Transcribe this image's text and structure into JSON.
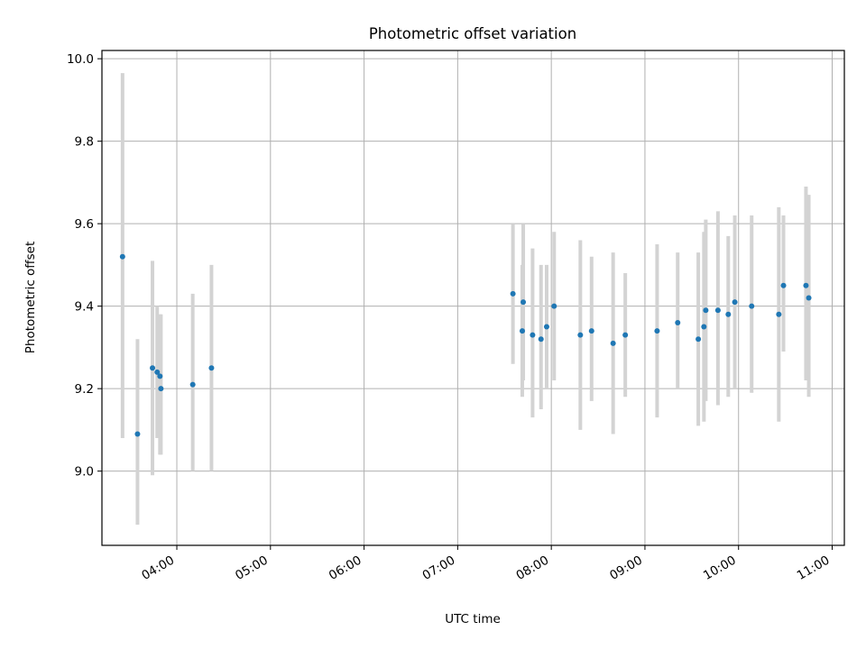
{
  "chart_data": {
    "type": "scatter",
    "title": "Photometric offset variation",
    "xlabel": "UTC time",
    "ylabel": "Photometric offset",
    "x_unit": "hour (UTC)",
    "xlim": [
      3.2,
      11.13
    ],
    "ylim": [
      8.82,
      10.02
    ],
    "grid": true,
    "x_ticks": [
      {
        "value": 4,
        "label": "04:00"
      },
      {
        "value": 5,
        "label": "05:00"
      },
      {
        "value": 6,
        "label": "06:00"
      },
      {
        "value": 7,
        "label": "07:00"
      },
      {
        "value": 8,
        "label": "08:00"
      },
      {
        "value": 9,
        "label": "09:00"
      },
      {
        "value": 10,
        "label": "10:00"
      },
      {
        "value": 11,
        "label": "11:00"
      }
    ],
    "y_ticks": [
      {
        "value": 9.0,
        "label": "9.0"
      },
      {
        "value": 9.2,
        "label": "9.2"
      },
      {
        "value": 9.4,
        "label": "9.4"
      },
      {
        "value": 9.6,
        "label": "9.6"
      },
      {
        "value": 9.8,
        "label": "9.8"
      },
      {
        "value": 10.0,
        "label": "10.0"
      }
    ],
    "marker_color": "#1f77b4",
    "errorbar_color": "#d3d3d3",
    "points": [
      {
        "x": 3.42,
        "y": 9.52,
        "low": 9.08,
        "high": 9.965
      },
      {
        "x": 3.58,
        "y": 9.09,
        "low": 8.87,
        "high": 9.32
      },
      {
        "x": 3.74,
        "y": 9.25,
        "low": 8.99,
        "high": 9.51
      },
      {
        "x": 3.79,
        "y": 9.24,
        "low": 9.08,
        "high": 9.4
      },
      {
        "x": 3.82,
        "y": 9.23,
        "low": 9.04,
        "high": 9.38
      },
      {
        "x": 3.83,
        "y": 9.2,
        "low": 9.04,
        "high": 9.38
      },
      {
        "x": 4.17,
        "y": 9.21,
        "low": 9.0,
        "high": 9.43
      },
      {
        "x": 4.37,
        "y": 9.25,
        "low": 9.0,
        "high": 9.5
      },
      {
        "x": 7.59,
        "y": 9.43,
        "low": 9.26,
        "high": 9.6
      },
      {
        "x": 7.69,
        "y": 9.34,
        "low": 9.18,
        "high": 9.5
      },
      {
        "x": 7.7,
        "y": 9.41,
        "low": 9.22,
        "high": 9.6
      },
      {
        "x": 7.8,
        "y": 9.33,
        "low": 9.13,
        "high": 9.54
      },
      {
        "x": 7.89,
        "y": 9.32,
        "low": 9.15,
        "high": 9.5
      },
      {
        "x": 7.95,
        "y": 9.35,
        "low": 9.2,
        "high": 9.5
      },
      {
        "x": 8.03,
        "y": 9.4,
        "low": 9.22,
        "high": 9.58
      },
      {
        "x": 8.31,
        "y": 9.33,
        "low": 9.1,
        "high": 9.56
      },
      {
        "x": 8.43,
        "y": 9.34,
        "low": 9.17,
        "high": 9.52
      },
      {
        "x": 8.66,
        "y": 9.31,
        "low": 9.09,
        "high": 9.53
      },
      {
        "x": 8.79,
        "y": 9.33,
        "low": 9.18,
        "high": 9.48
      },
      {
        "x": 9.13,
        "y": 9.34,
        "low": 9.13,
        "high": 9.55
      },
      {
        "x": 9.35,
        "y": 9.36,
        "low": 9.2,
        "high": 9.53
      },
      {
        "x": 9.57,
        "y": 9.32,
        "low": 9.11,
        "high": 9.53
      },
      {
        "x": 9.63,
        "y": 9.35,
        "low": 9.12,
        "high": 9.58
      },
      {
        "x": 9.65,
        "y": 9.39,
        "low": 9.17,
        "high": 9.61
      },
      {
        "x": 9.78,
        "y": 9.39,
        "low": 9.16,
        "high": 9.63
      },
      {
        "x": 9.89,
        "y": 9.38,
        "low": 9.18,
        "high": 9.57
      },
      {
        "x": 9.96,
        "y": 9.41,
        "low": 9.2,
        "high": 9.62
      },
      {
        "x": 10.14,
        "y": 9.4,
        "low": 9.19,
        "high": 9.62
      },
      {
        "x": 10.43,
        "y": 9.38,
        "low": 9.12,
        "high": 9.64
      },
      {
        "x": 10.48,
        "y": 9.45,
        "low": 9.29,
        "high": 9.62
      },
      {
        "x": 10.72,
        "y": 9.45,
        "low": 9.22,
        "high": 9.69
      },
      {
        "x": 10.75,
        "y": 9.42,
        "low": 9.18,
        "high": 9.67
      }
    ]
  }
}
